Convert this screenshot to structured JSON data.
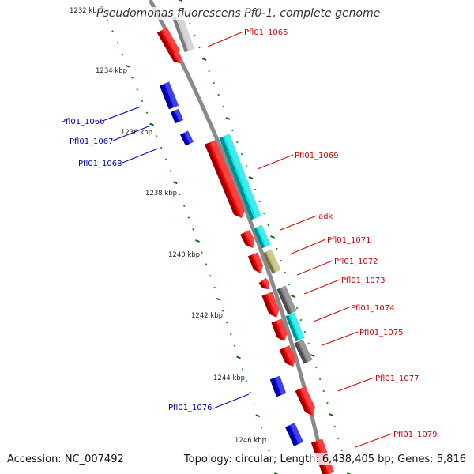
{
  "title": "Pseudomonas fluorescens Pf0-1, complete genome",
  "accession_text": "Accession: NC_007492",
  "summary_text": "Topology: circular; Length: 6,438,405 bp; Genes: 5,816",
  "colors": {
    "backbone": "#888888",
    "forward_cds": "#ff0000",
    "reverse_cds": "#0000ee",
    "cyan_feature": "#00e5e5",
    "gray_feature": "#777777",
    "olive_feature": "#bdb76b",
    "light_gray_feature": "#c8c8c8",
    "tick_major": "#006400",
    "tick_minor": "#228b22",
    "forward_label": "#cc0000",
    "reverse_label": "#0000aa"
  },
  "axis": {
    "kbp_labels": [
      "1232 kbp",
      "1234 kbp",
      "1236 kbp",
      "1238 kbp",
      "1240 kbp",
      "1242 kbp",
      "1244 kbp",
      "1246 kbp"
    ]
  },
  "labels": {
    "forward": [
      "Pfl01_1065",
      "Pfl01_1069",
      "adk",
      "Pfl01_1071",
      "Pfl01_1072",
      "Pfl01_1073",
      "Pfl01_1074",
      "Pfl01_1075",
      "Pfl01_1077",
      "Pfl01_1079"
    ],
    "reverse": [
      "Pfl01_1066",
      "Pfl01_1067",
      "Pfl01_1068",
      "Pfl01_1076"
    ]
  }
}
